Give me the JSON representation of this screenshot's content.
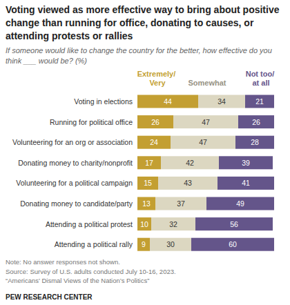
{
  "chart_data": {
    "type": "bar",
    "orientation": "horizontal",
    "stacked": true,
    "data_labels": true,
    "tick_labels": "y",
    "title": "Voting viewed as more effective way to bring about positive change than running for office, donating to causes, or attending protests or rallies",
    "subtitle": "If someone would like to change the country for the better, how effective do you think ___ would be? (%)",
    "categories": [
      "Voting in elections",
      "Running for political office",
      "Volunteering for an org or association",
      "Donating money to charity/nonprofit",
      "Volunteering for a political campaign",
      "Donating money to candidate/party",
      "Attending a political protest",
      "Attending a political rally"
    ],
    "series": [
      {
        "name": "Extremely/ Very",
        "color": "#c39f32",
        "values": [
          44,
          26,
          24,
          17,
          15,
          13,
          10,
          9
        ]
      },
      {
        "name": "Somewhat",
        "color": "#dcd7c1",
        "values": [
          34,
          47,
          47,
          42,
          43,
          37,
          32,
          30
        ]
      },
      {
        "name": "Not too/ at all",
        "color": "#64558a",
        "values": [
          21,
          26,
          28,
          39,
          41,
          49,
          56,
          60
        ]
      }
    ],
    "xlim": [
      0,
      100
    ],
    "notes": [
      "Note: No answer responses not shown.",
      "Source: Survey of U.S. adults conducted July 10-16, 2023.",
      "“Americans’ Dismal Views of the Nation’s Politics”"
    ],
    "credit": "PEW RESEARCH CENTER"
  }
}
